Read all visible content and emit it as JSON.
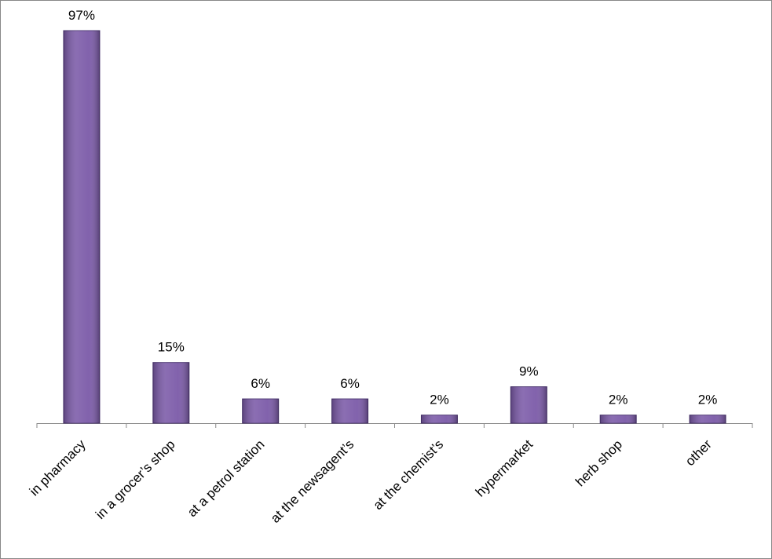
{
  "chart_data": {
    "type": "bar",
    "categories": [
      "in pharmacy",
      "in a grocer’s shop",
      "at a petrol station",
      "at the newsagent’s",
      "at the chemist’s",
      "hypermarket",
      "herb shop",
      "other"
    ],
    "values": [
      97,
      15,
      6,
      6,
      2,
      9,
      2,
      2
    ],
    "value_labels": [
      "97%",
      "15%",
      "6%",
      "6%",
      "2%",
      "9%",
      "2%",
      "2%"
    ],
    "color": "#7b5aa8"
  }
}
